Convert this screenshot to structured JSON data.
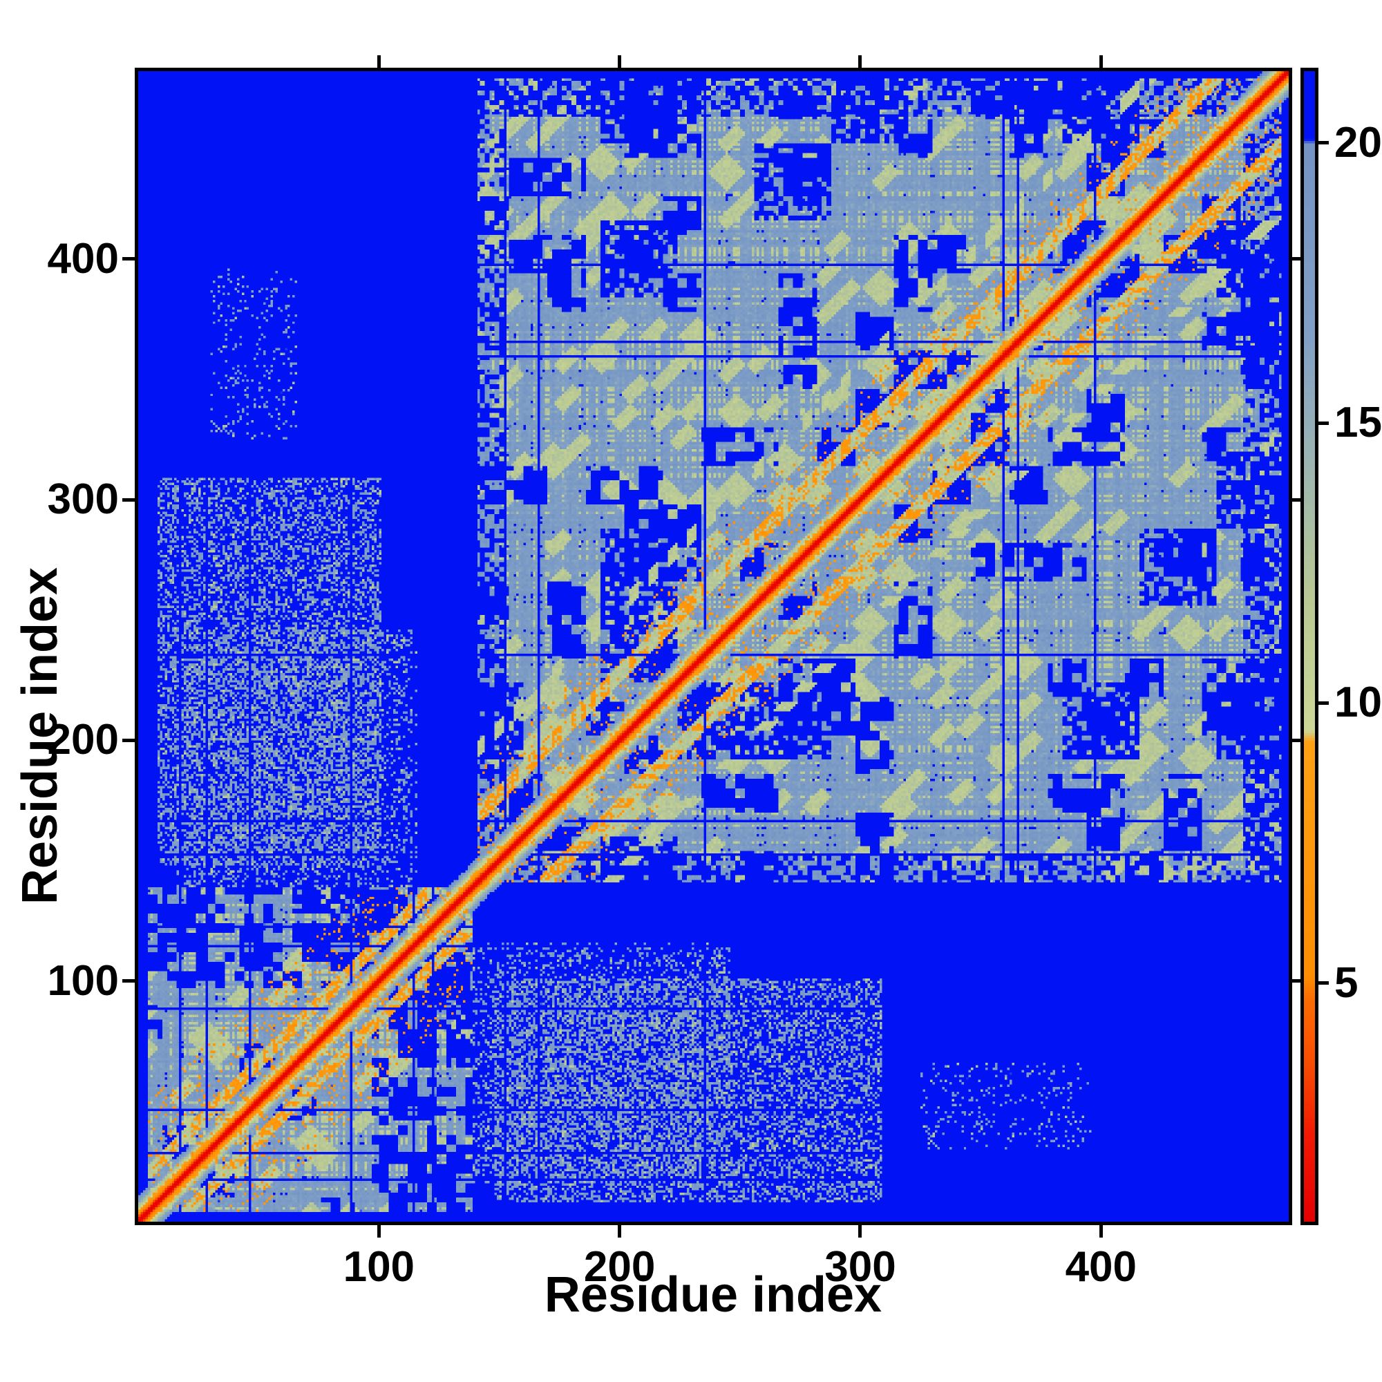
{
  "figure": {
    "background": "#ffffff",
    "frame_color": "#000000"
  },
  "chart_data": {
    "type": "heatmap",
    "title": "",
    "xlabel": "Residue index",
    "ylabel": "Residue index",
    "x_ticks": [
      100,
      200,
      300,
      400
    ],
    "y_ticks": [
      100,
      200,
      300,
      400
    ],
    "axis_range": [
      0,
      478
    ],
    "n_residues": 478,
    "grid": false,
    "legend_position": "none",
    "colorbar": {
      "position": "right",
      "ticks": [
        5,
        10,
        15,
        20
      ],
      "tick_labels": [
        "5",
        "10",
        "15",
        "20"
      ],
      "range": [
        0.74,
        21.28
      ],
      "color_stops": [
        [
          0.74,
          "#e50000"
        ],
        [
          2.3,
          "#f21900"
        ],
        [
          3.5,
          "#f94b00"
        ],
        [
          4.7,
          "#fd6c00"
        ],
        [
          5.1,
          "#ff8d00"
        ],
        [
          9.3,
          "#ffa013"
        ],
        [
          9.5,
          "#cdd795"
        ],
        [
          12.0,
          "#b7c894"
        ],
        [
          14.5,
          "#9ab3b4"
        ],
        [
          16.5,
          "#81a0c6"
        ],
        [
          20.0,
          "#7394c4"
        ],
        [
          20.08,
          "#0113f5"
        ],
        [
          21.4,
          "#0113f5"
        ]
      ]
    },
    "structure": {
      "matrix": "symmetric residue-residue distance map",
      "diagonal_value": 0.8,
      "near_diagonal_gradient_per_residue": 1.95,
      "background_value": 21.4,
      "domains": [
        [
          4,
          138
        ],
        [
          141,
          474
        ]
      ],
      "domain_field_value_range": [
        15.0,
        20.6
      ],
      "sage_speckle_value_range": [
        10.3,
        12.9
      ],
      "orange_speckle_value_range": [
        5.6,
        8.0
      ],
      "secondary_diagonals": [
        {
          "domain": 2,
          "offset_range": [
            24,
            31
          ],
          "value": 7.0
        },
        {
          "domain": 2,
          "offset_range": [
            52,
            58
          ],
          "value": 10.5
        },
        {
          "domain": 1,
          "offset_range": [
            13,
            19
          ],
          "value": 7.0
        }
      ],
      "inter_domain_patches": [
        {
          "i_range": [
            8,
            100
          ],
          "j_range": [
            148,
            308
          ],
          "density": 0.38
        },
        {
          "i_range": [
            15,
            115
          ],
          "j_range": [
            112,
            245
          ],
          "density": 0.25
        },
        {
          "i_range": [
            30,
            65
          ],
          "j_range": [
            325,
            395
          ],
          "density": 0.12
        }
      ],
      "noise_seed": 7
    }
  }
}
